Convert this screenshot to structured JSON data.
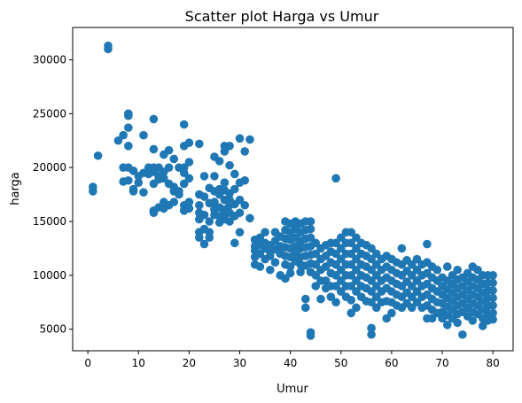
{
  "chart_data": {
    "type": "scatter",
    "title": "Scatter plot Harga vs Umur",
    "xlabel": "Umur",
    "ylabel": "harga",
    "xlim": [
      -3,
      84
    ],
    "ylim": [
      3000,
      33000
    ],
    "xticks": [
      0,
      10,
      20,
      30,
      40,
      50,
      60,
      70,
      80
    ],
    "yticks": [
      5000,
      10000,
      15000,
      20000,
      25000,
      30000
    ],
    "xtick_labels": [
      "0",
      "10",
      "20",
      "30",
      "40",
      "50",
      "60",
      "70",
      "80"
    ],
    "ytick_labels": [
      "5000",
      "10000",
      "15000",
      "20000",
      "25000",
      "30000"
    ],
    "grid": false,
    "legend": false,
    "color": "#1f77b4",
    "points": [
      [
        1,
        18200
      ],
      [
        1,
        17800
      ],
      [
        2,
        21100
      ],
      [
        4,
        31300
      ],
      [
        4,
        31000
      ],
      [
        6,
        22500
      ],
      [
        7,
        23000
      ],
      [
        7,
        20000
      ],
      [
        7,
        18700
      ],
      [
        8,
        25000
      ],
      [
        8,
        24800
      ],
      [
        8,
        23700
      ],
      [
        8,
        22000
      ],
      [
        8,
        20000
      ],
      [
        8,
        18800
      ],
      [
        9,
        19700
      ],
      [
        9,
        18000
      ],
      [
        9,
        17800
      ],
      [
        10,
        19200
      ],
      [
        10,
        18600
      ],
      [
        11,
        23000
      ],
      [
        11,
        19500
      ],
      [
        11,
        17700
      ],
      [
        12,
        20000
      ],
      [
        12,
        19400
      ],
      [
        13,
        24500
      ],
      [
        13,
        21700
      ],
      [
        13,
        20000
      ],
      [
        13,
        19600
      ],
      [
        13,
        18500
      ],
      [
        13,
        16000
      ],
      [
        13,
        15800
      ],
      [
        14,
        20000
      ],
      [
        14,
        19200
      ],
      [
        14,
        18900
      ],
      [
        14,
        16300
      ],
      [
        15,
        21200
      ],
      [
        15,
        19600
      ],
      [
        15,
        19000
      ],
      [
        15,
        16800
      ],
      [
        15,
        16200
      ],
      [
        16,
        21600
      ],
      [
        16,
        20000
      ],
      [
        16,
        18500
      ],
      [
        16,
        16500
      ],
      [
        17,
        20800
      ],
      [
        17,
        18200
      ],
      [
        17,
        17800
      ],
      [
        17,
        16800
      ],
      [
        18,
        20000
      ],
      [
        18,
        17800
      ],
      [
        18,
        17500
      ],
      [
        19,
        24000
      ],
      [
        19,
        22000
      ],
      [
        19,
        20000
      ],
      [
        19,
        19500
      ],
      [
        19,
        18500
      ],
      [
        19,
        16500
      ],
      [
        19,
        16000
      ],
      [
        20,
        22300
      ],
      [
        20,
        20500
      ],
      [
        20,
        19000
      ],
      [
        20,
        16800
      ],
      [
        20,
        16200
      ],
      [
        22,
        22200
      ],
      [
        22,
        17500
      ],
      [
        22,
        16500
      ],
      [
        22,
        15800
      ],
      [
        22,
        15200
      ],
      [
        22,
        14000
      ],
      [
        22,
        13500
      ],
      [
        23,
        19200
      ],
      [
        23,
        17300
      ],
      [
        23,
        15600
      ],
      [
        23,
        14300
      ],
      [
        23,
        12900
      ],
      [
        24,
        18100
      ],
      [
        24,
        16700
      ],
      [
        24,
        15000
      ],
      [
        24,
        14000
      ],
      [
        24,
        13500
      ],
      [
        25,
        21000
      ],
      [
        25,
        19200
      ],
      [
        25,
        17800
      ],
      [
        25,
        16800
      ],
      [
        25,
        16100
      ],
      [
        25,
        15600
      ],
      [
        26,
        20600
      ],
      [
        26,
        18000
      ],
      [
        26,
        17500
      ],
      [
        26,
        16300
      ],
      [
        26,
        15500
      ],
      [
        26,
        14900
      ],
      [
        27,
        22000
      ],
      [
        27,
        21500
      ],
      [
        27,
        18600
      ],
      [
        27,
        17900
      ],
      [
        27,
        17000
      ],
      [
        27,
        16100
      ],
      [
        27,
        15800
      ],
      [
        27,
        15200
      ],
      [
        28,
        22000
      ],
      [
        28,
        20200
      ],
      [
        28,
        17600
      ],
      [
        28,
        17000
      ],
      [
        28,
        16500
      ],
      [
        28,
        15800
      ],
      [
        28,
        15000
      ],
      [
        29,
        19400
      ],
      [
        29,
        18000
      ],
      [
        29,
        16600
      ],
      [
        29,
        15500
      ],
      [
        29,
        13000
      ],
      [
        30,
        22700
      ],
      [
        30,
        18600
      ],
      [
        30,
        17000
      ],
      [
        30,
        15800
      ],
      [
        30,
        14000
      ],
      [
        31,
        21500
      ],
      [
        31,
        18800
      ],
      [
        31,
        16500
      ],
      [
        32,
        22600
      ],
      [
        32,
        15300
      ],
      [
        33,
        13300
      ],
      [
        33,
        12700
      ],
      [
        33,
        12300
      ],
      [
        33,
        11700
      ],
      [
        33,
        11000
      ],
      [
        34,
        13500
      ],
      [
        34,
        12800
      ],
      [
        34,
        12000
      ],
      [
        34,
        10800
      ],
      [
        35,
        14000
      ],
      [
        35,
        13000
      ],
      [
        35,
        12500
      ],
      [
        35,
        11500
      ],
      [
        36,
        12800
      ],
      [
        36,
        12200
      ],
      [
        36,
        11800
      ],
      [
        36,
        10500
      ],
      [
        37,
        14000
      ],
      [
        37,
        13200
      ],
      [
        37,
        12400
      ],
      [
        37,
        11200
      ],
      [
        38,
        13600
      ],
      [
        38,
        12700
      ],
      [
        38,
        12000
      ],
      [
        38,
        10000
      ],
      [
        39,
        15000
      ],
      [
        39,
        14200
      ],
      [
        39,
        13400
      ],
      [
        39,
        12600
      ],
      [
        39,
        11800
      ],
      [
        39,
        11000
      ],
      [
        39,
        9700
      ],
      [
        40,
        14800
      ],
      [
        40,
        14000
      ],
      [
        40,
        13300
      ],
      [
        40,
        12500
      ],
      [
        40,
        11700
      ],
      [
        40,
        10800
      ],
      [
        40,
        10200
      ],
      [
        41,
        15000
      ],
      [
        41,
        14300
      ],
      [
        41,
        13500
      ],
      [
        41,
        12700
      ],
      [
        41,
        12000
      ],
      [
        41,
        11300
      ],
      [
        42,
        14800
      ],
      [
        42,
        14000
      ],
      [
        42,
        13200
      ],
      [
        42,
        12500
      ],
      [
        42,
        11700
      ],
      [
        42,
        11000
      ],
      [
        42,
        10300
      ],
      [
        43,
        15000
      ],
      [
        43,
        14200
      ],
      [
        43,
        13400
      ],
      [
        43,
        12600
      ],
      [
        43,
        11800
      ],
      [
        43,
        10900
      ],
      [
        43,
        7800
      ],
      [
        43,
        7000
      ],
      [
        44,
        15000
      ],
      [
        44,
        14300
      ],
      [
        44,
        13500
      ],
      [
        44,
        12700
      ],
      [
        44,
        11900
      ],
      [
        44,
        11100
      ],
      [
        44,
        10300
      ],
      [
        44,
        4700
      ],
      [
        44,
        4400
      ],
      [
        45,
        13000
      ],
      [
        45,
        12000
      ],
      [
        45,
        11000
      ],
      [
        45,
        10000
      ],
      [
        45,
        9000
      ],
      [
        46,
        12500
      ],
      [
        46,
        11500
      ],
      [
        46,
        10500
      ],
      [
        46,
        9500
      ],
      [
        46,
        7800
      ],
      [
        47,
        12800
      ],
      [
        47,
        11800
      ],
      [
        47,
        10800
      ],
      [
        47,
        9500
      ],
      [
        47,
        8800
      ],
      [
        48,
        13000
      ],
      [
        48,
        12200
      ],
      [
        48,
        11200
      ],
      [
        48,
        10200
      ],
      [
        48,
        9000
      ],
      [
        48,
        8000
      ],
      [
        49,
        19000
      ],
      [
        49,
        13000
      ],
      [
        49,
        12000
      ],
      [
        49,
        11000
      ],
      [
        49,
        10000
      ],
      [
        49,
        9000
      ],
      [
        49,
        7500
      ],
      [
        50,
        13500
      ],
      [
        50,
        12500
      ],
      [
        50,
        11500
      ],
      [
        50,
        10500
      ],
      [
        50,
        9500
      ],
      [
        50,
        8500
      ],
      [
        51,
        14000
      ],
      [
        51,
        13000
      ],
      [
        51,
        12000
      ],
      [
        51,
        11000
      ],
      [
        51,
        10000
      ],
      [
        51,
        9000
      ],
      [
        51,
        8000
      ],
      [
        52,
        14000
      ],
      [
        52,
        13000
      ],
      [
        52,
        12000
      ],
      [
        52,
        11000
      ],
      [
        52,
        10000
      ],
      [
        52,
        9000
      ],
      [
        52,
        7700
      ],
      [
        52,
        6500
      ],
      [
        53,
        13500
      ],
      [
        53,
        12500
      ],
      [
        53,
        11500
      ],
      [
        53,
        10500
      ],
      [
        53,
        9500
      ],
      [
        53,
        8500
      ],
      [
        53,
        7000
      ],
      [
        54,
        13000
      ],
      [
        54,
        12000
      ],
      [
        54,
        11000
      ],
      [
        54,
        10000
      ],
      [
        54,
        9000
      ],
      [
        54,
        8000
      ],
      [
        55,
        12800
      ],
      [
        55,
        11800
      ],
      [
        55,
        10800
      ],
      [
        55,
        9800
      ],
      [
        55,
        8800
      ],
      [
        55,
        7600
      ],
      [
        56,
        12500
      ],
      [
        56,
        11500
      ],
      [
        56,
        10500
      ],
      [
        56,
        9500
      ],
      [
        56,
        8500
      ],
      [
        56,
        7500
      ],
      [
        56,
        5100
      ],
      [
        56,
        4500
      ],
      [
        57,
        12000
      ],
      [
        57,
        11000
      ],
      [
        57,
        10000
      ],
      [
        57,
        9000
      ],
      [
        57,
        8000
      ],
      [
        57,
        7000
      ],
      [
        58,
        11500
      ],
      [
        58,
        10500
      ],
      [
        58,
        9500
      ],
      [
        58,
        8500
      ],
      [
        58,
        7500
      ],
      [
        59,
        11800
      ],
      [
        59,
        10800
      ],
      [
        59,
        9800
      ],
      [
        59,
        8800
      ],
      [
        59,
        7600
      ],
      [
        59,
        6000
      ],
      [
        60,
        11500
      ],
      [
        60,
        10500
      ],
      [
        60,
        9500
      ],
      [
        60,
        8500
      ],
      [
        60,
        7500
      ],
      [
        60,
        6500
      ],
      [
        61,
        11200
      ],
      [
        61,
        10200
      ],
      [
        61,
        9200
      ],
      [
        61,
        8200
      ],
      [
        61,
        7200
      ],
      [
        62,
        12500
      ],
      [
        62,
        11000
      ],
      [
        62,
        10000
      ],
      [
        62,
        9000
      ],
      [
        62,
        8000
      ],
      [
        62,
        7000
      ],
      [
        63,
        11400
      ],
      [
        63,
        10400
      ],
      [
        63,
        9400
      ],
      [
        63,
        8400
      ],
      [
        63,
        7400
      ],
      [
        64,
        11000
      ],
      [
        64,
        10000
      ],
      [
        64,
        9000
      ],
      [
        64,
        8000
      ],
      [
        64,
        7000
      ],
      [
        65,
        11500
      ],
      [
        65,
        10500
      ],
      [
        65,
        9500
      ],
      [
        65,
        8500
      ],
      [
        65,
        7500
      ],
      [
        66,
        11000
      ],
      [
        66,
        10000
      ],
      [
        66,
        9000
      ],
      [
        66,
        8000
      ],
      [
        66,
        7000
      ],
      [
        67,
        12900
      ],
      [
        67,
        11200
      ],
      [
        67,
        10200
      ],
      [
        67,
        9200
      ],
      [
        67,
        8200
      ],
      [
        67,
        7200
      ],
      [
        67,
        6000
      ],
      [
        68,
        10800
      ],
      [
        68,
        9800
      ],
      [
        68,
        8800
      ],
      [
        68,
        7800
      ],
      [
        68,
        6800
      ],
      [
        68,
        6000
      ],
      [
        69,
        10500
      ],
      [
        69,
        9500
      ],
      [
        69,
        8500
      ],
      [
        69,
        7500
      ],
      [
        69,
        6500
      ],
      [
        70,
        9800
      ],
      [
        70,
        9000
      ],
      [
        70,
        8200
      ],
      [
        70,
        7400
      ],
      [
        70,
        6600
      ],
      [
        70,
        6000
      ],
      [
        71,
        10800
      ],
      [
        71,
        9500
      ],
      [
        71,
        8700
      ],
      [
        71,
        7900
      ],
      [
        71,
        7100
      ],
      [
        71,
        6300
      ],
      [
        71,
        5400
      ],
      [
        72,
        10000
      ],
      [
        72,
        9200
      ],
      [
        72,
        8400
      ],
      [
        72,
        7600
      ],
      [
        72,
        6800
      ],
      [
        72,
        6000
      ],
      [
        73,
        10500
      ],
      [
        73,
        9600
      ],
      [
        73,
        8800
      ],
      [
        73,
        8000
      ],
      [
        73,
        7200
      ],
      [
        73,
        6400
      ],
      [
        73,
        5600
      ],
      [
        74,
        9800
      ],
      [
        74,
        9000
      ],
      [
        74,
        8200
      ],
      [
        74,
        7400
      ],
      [
        74,
        6600
      ],
      [
        74,
        4500
      ],
      [
        75,
        10200
      ],
      [
        75,
        9400
      ],
      [
        75,
        8600
      ],
      [
        75,
        7800
      ],
      [
        75,
        7000
      ],
      [
        75,
        6200
      ],
      [
        76,
        10800
      ],
      [
        76,
        9800
      ],
      [
        76,
        9000
      ],
      [
        76,
        8200
      ],
      [
        76,
        7400
      ],
      [
        76,
        6600
      ],
      [
        76,
        5800
      ],
      [
        77,
        10500
      ],
      [
        77,
        9600
      ],
      [
        77,
        8800
      ],
      [
        77,
        8000
      ],
      [
        77,
        7200
      ],
      [
        77,
        6400
      ],
      [
        78,
        10000
      ],
      [
        78,
        9200
      ],
      [
        78,
        8400
      ],
      [
        78,
        7600
      ],
      [
        78,
        6800
      ],
      [
        78,
        6000
      ],
      [
        78,
        5300
      ],
      [
        79,
        10000
      ],
      [
        79,
        9300
      ],
      [
        79,
        8600
      ],
      [
        79,
        7900
      ],
      [
        79,
        7200
      ],
      [
        79,
        6500
      ],
      [
        79,
        5800
      ],
      [
        80,
        10000
      ],
      [
        80,
        9300
      ],
      [
        80,
        8600
      ],
      [
        80,
        7900
      ],
      [
        80,
        7200
      ],
      [
        80,
        6500
      ],
      [
        80,
        5900
      ]
    ]
  }
}
